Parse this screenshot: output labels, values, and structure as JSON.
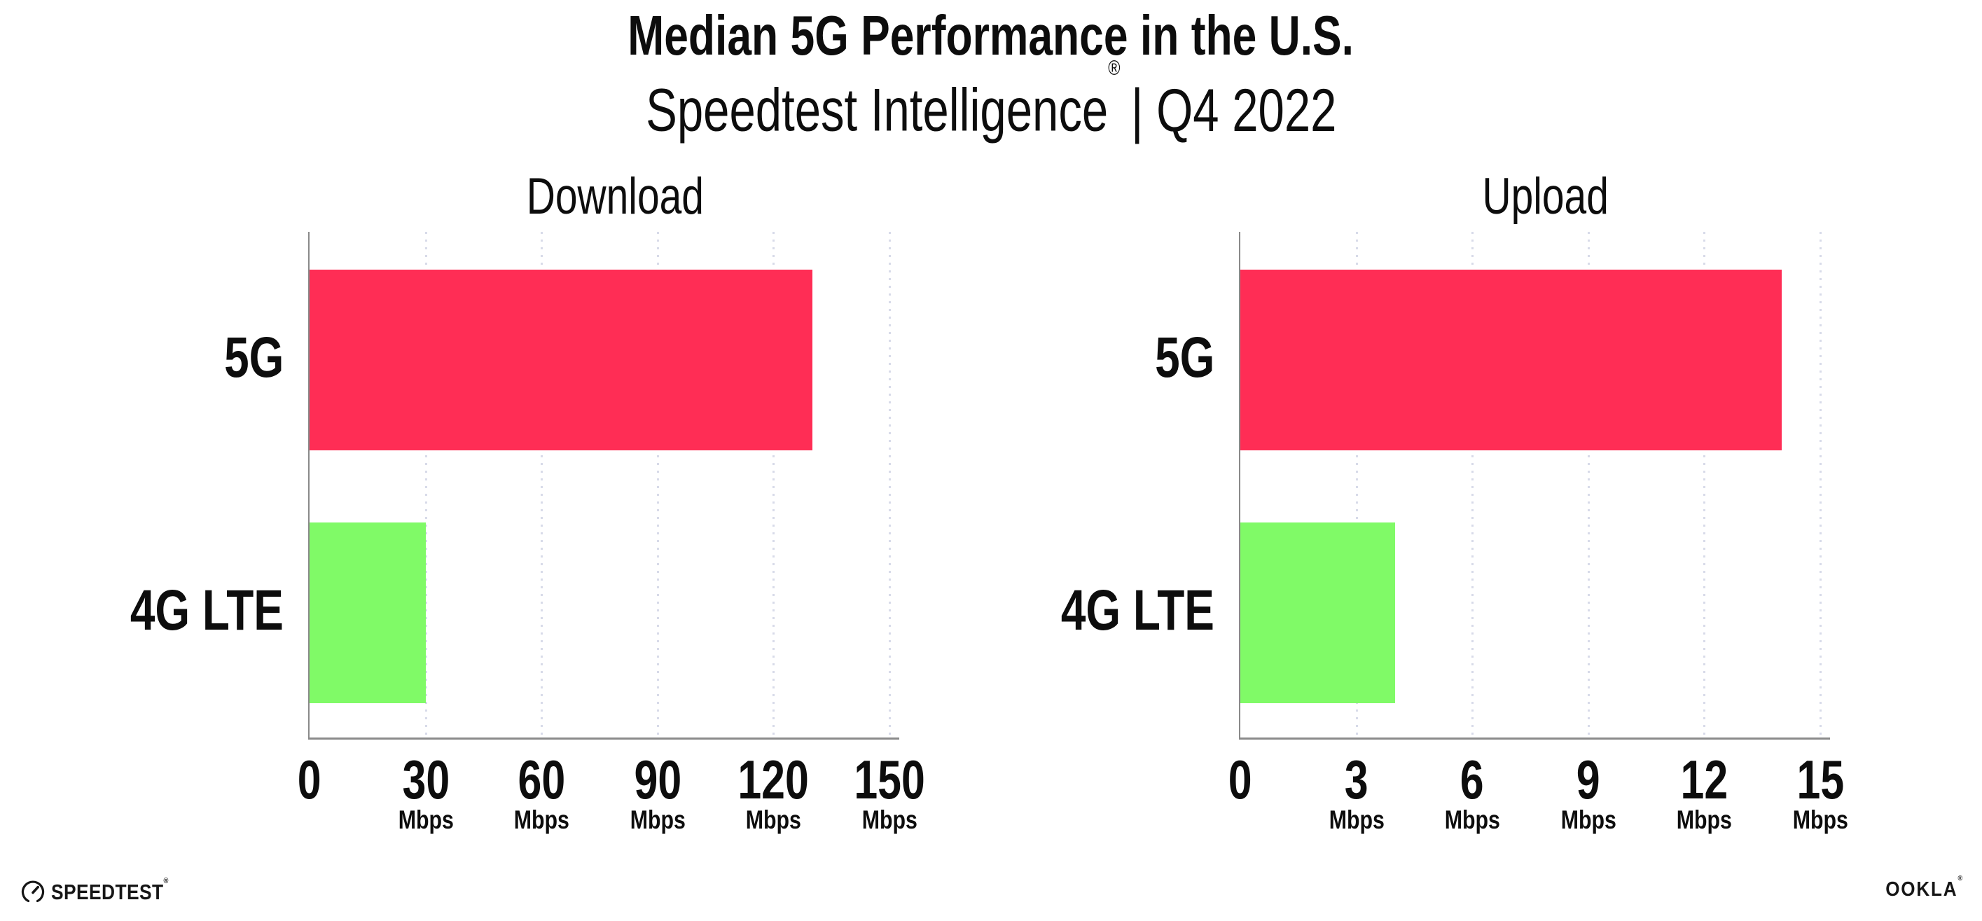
{
  "header": {
    "title": "Median 5G Performance in the U.S.",
    "subtitle_brand": "Speedtest Intelligence",
    "subtitle_reg": "®",
    "subtitle_rest": "| Q4 2022"
  },
  "colors": {
    "bar_5g": "#FF2D55",
    "bar_4g_lte": "#80FA67",
    "gridline": "#D8DBE9",
    "axis": "#8A8A8A",
    "text": "#0D0D0D"
  },
  "chart_data": [
    {
      "type": "bar",
      "orientation": "horizontal",
      "title": "Download",
      "categories": [
        "5G",
        "4G LTE"
      ],
      "values": [
        130,
        30
      ],
      "unit": "Mbps",
      "xlim": [
        0,
        150
      ],
      "ticks": [
        0,
        30,
        60,
        90,
        120,
        150
      ],
      "grid": "vertical-dotted",
      "legend": "none",
      "bar_colors": [
        "#FF2D55",
        "#80FA67"
      ]
    },
    {
      "type": "bar",
      "orientation": "horizontal",
      "title": "Upload",
      "categories": [
        "5G",
        "4G LTE"
      ],
      "values": [
        14,
        4
      ],
      "unit": "Mbps",
      "xlim": [
        0,
        15
      ],
      "ticks": [
        0,
        3,
        6,
        9,
        12,
        15
      ],
      "grid": "vertical-dotted",
      "legend": "none",
      "bar_colors": [
        "#FF2D55",
        "#80FA67"
      ]
    }
  ],
  "footer": {
    "speedtest": {
      "label": "SPEEDTEST",
      "reg": "®"
    },
    "ookla": {
      "label": "OOKLA",
      "reg": "®"
    }
  }
}
